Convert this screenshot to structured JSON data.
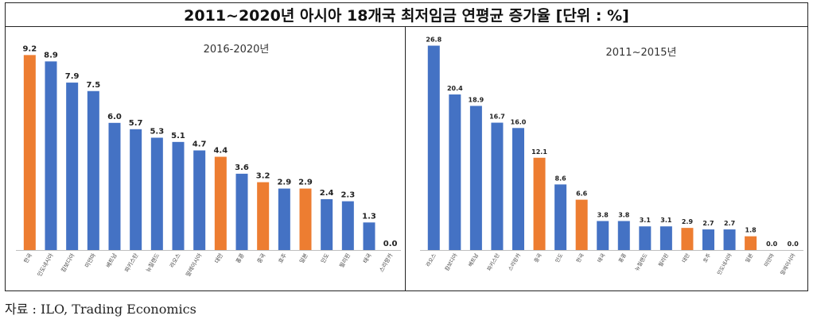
{
  "title": "2011~2020년 아시아 18개국 최저임금 연평균 증가율 [단위 : %]",
  "source": "자료 : ILO, Trading Economics",
  "colors": {
    "blue": "#4472c4",
    "orange": "#ed7d31"
  },
  "chart_data": [
    {
      "type": "bar",
      "title": "2016-2020년",
      "xlabel": "",
      "ylabel": "",
      "ylim": [
        0,
        10
      ],
      "categories": [
        "한국",
        "인도네시아",
        "캄보디아",
        "미얀마",
        "베트남",
        "파키스탄",
        "뉴질랜드",
        "라오스",
        "말레이시아",
        "대만",
        "홍콩",
        "중국",
        "호주",
        "일본",
        "인도",
        "필리핀",
        "태국",
        "스리랑카"
      ],
      "values": [
        9.2,
        8.9,
        7.9,
        7.5,
        6.0,
        5.7,
        5.3,
        5.1,
        4.7,
        4.4,
        3.6,
        3.2,
        2.9,
        2.9,
        2.4,
        2.3,
        1.3,
        0.0
      ],
      "value_labels": [
        "9.2",
        "8.9",
        "7.9",
        "7.5",
        "6.0",
        "5.7",
        "5.3",
        "5.1",
        "4.7",
        "4.4",
        "3.6",
        "3.2",
        "2.9",
        "2.9",
        "2.4",
        "2.3",
        "1.3",
        "0.0"
      ],
      "highlight": [
        "한국",
        "대만",
        "중국",
        "일본"
      ],
      "grid": false,
      "legend": "none"
    },
    {
      "type": "bar",
      "title": "2011~2015년",
      "xlabel": "",
      "ylabel": "",
      "ylim": [
        0,
        28
      ],
      "categories": [
        "라오스",
        "캄보디아",
        "베트남",
        "파키스탄",
        "스리랑카",
        "중국",
        "인도",
        "한국",
        "태국",
        "홍콩",
        "뉴질랜드",
        "필리핀",
        "대만",
        "호주",
        "인도네시아",
        "일본",
        "미얀마",
        "말레이시아"
      ],
      "values": [
        26.8,
        20.4,
        18.9,
        16.7,
        16.0,
        12.1,
        8.6,
        6.6,
        3.8,
        3.8,
        3.1,
        3.1,
        2.9,
        2.7,
        2.7,
        1.8,
        0.0,
        0.0
      ],
      "value_labels": [
        "26.8",
        "20.4",
        "18.9",
        "16.7",
        "16.0",
        "12.1",
        "8.6",
        "6.6",
        "3.8",
        "3.8",
        "3.1",
        "3.1",
        "2.9",
        "2.7",
        "2.7",
        "1.8",
        "0.0",
        "0.0"
      ],
      "highlight": [
        "중국",
        "한국",
        "대만",
        "일본"
      ],
      "grid": false,
      "legend": "none"
    }
  ]
}
